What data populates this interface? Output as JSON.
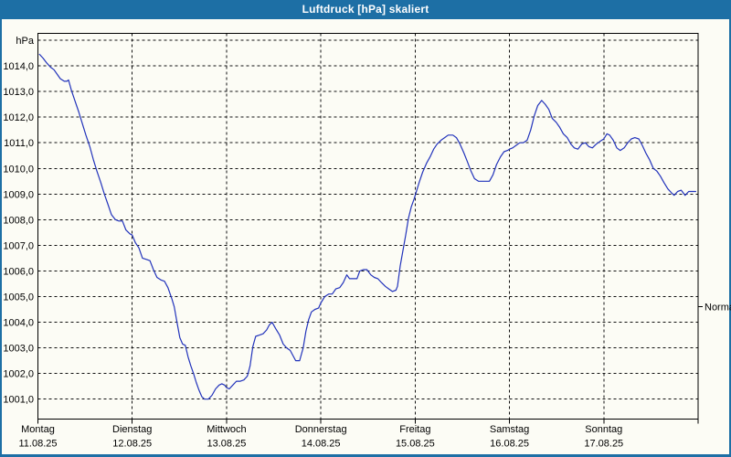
{
  "window": {
    "title": "Luftdruck [hPa] skaliert"
  },
  "colors": {
    "titlebar": "#1d6fa5",
    "frame": "#1d6fa5",
    "background": "#fcfcf5",
    "grid": "#111111",
    "axis": "#000000",
    "line": "#2233bb",
    "text": "#000000"
  },
  "chart_data": {
    "type": "line",
    "title": "Luftdruck [hPa] skaliert",
    "y_axis": {
      "unit_label": "hPa",
      "unit_line_value": 1015,
      "ticks": [
        {
          "value": 1014,
          "label": "1014,0"
        },
        {
          "value": 1013,
          "label": "1013,0"
        },
        {
          "value": 1012,
          "label": "1012,0"
        },
        {
          "value": 1011,
          "label": "1011,0"
        },
        {
          "value": 1010,
          "label": "1010,0"
        },
        {
          "value": 1009,
          "label": "1009,0"
        },
        {
          "value": 1008,
          "label": "1008,0"
        },
        {
          "value": 1007,
          "label": "1007,0"
        },
        {
          "value": 1006,
          "label": "1006,0"
        },
        {
          "value": 1005,
          "label": "1005,0"
        },
        {
          "value": 1004,
          "label": "1004,0"
        },
        {
          "value": 1003,
          "label": "1003,0"
        },
        {
          "value": 1002,
          "label": "1002,0"
        },
        {
          "value": 1001,
          "label": "1001,0"
        }
      ]
    },
    "ylim": [
      1000.2,
      1015.3
    ],
    "x_range_hours": [
      0,
      168
    ],
    "grid": true,
    "legend": "none",
    "x_days": [
      {
        "name": "Montag",
        "date": "11.08.25"
      },
      {
        "name": "Dienstag",
        "date": "12.08.25"
      },
      {
        "name": "Mittwoch",
        "date": "13.08.25"
      },
      {
        "name": "Donnerstag",
        "date": "14.08.25"
      },
      {
        "name": "Freitag",
        "date": "15.08.25"
      },
      {
        "name": "Samstag",
        "date": "16.08.25"
      },
      {
        "name": "Sonntag",
        "date": "17.08.25"
      }
    ],
    "annotations": [
      {
        "label": "Normal",
        "value": 1004.6,
        "side": "right"
      }
    ],
    "series": [
      {
        "name": "Luftdruck",
        "unit": "hPa",
        "color": "#2233bb",
        "x_hours": [
          0.4,
          1.3,
          2.3,
          3.2,
          4.1,
          5,
          5.7,
          6.7,
          7.4,
          7.8,
          8.5,
          9.4,
          10.4,
          11.3,
          12.2,
          13.2,
          14.1,
          15,
          16,
          16.9,
          17.8,
          18.7,
          19.7,
          20.6,
          21.5,
          22.4,
          23.4,
          24,
          24.8,
          25.7,
          26.6,
          27.6,
          28.5,
          29.4,
          30.3,
          31.3,
          32.2,
          33.1,
          34.1,
          34.7,
          35.4,
          36.1,
          36.8,
          37.5,
          38.2,
          38.9,
          39.6,
          40.3,
          41,
          41.7,
          42.4,
          43.4,
          44.3,
          45.2,
          46.1,
          46.8,
          47.5,
          48,
          48.7,
          49.6,
          50.5,
          51.5,
          52.4,
          53.3,
          54,
          54.7,
          55.4,
          56.4,
          57.3,
          58.2,
          58.9,
          59.6,
          60.5,
          61.5,
          62.4,
          63.3,
          64.2,
          64.9,
          65.6,
          66.6,
          67.5,
          68.2,
          68.9,
          69.6,
          70.5,
          71.4,
          72,
          73,
          74,
          74.9,
          75.8,
          76.8,
          77.7,
          78.6,
          79.3,
          80.2,
          81.2,
          81.9,
          82.8,
          83.7,
          84.7,
          85.6,
          86.5,
          87.4,
          88.4,
          89.3,
          90.2,
          91.1,
          91.5,
          92.2,
          92.9,
          93.6,
          94.3,
          95,
          95.7,
          96,
          97,
          97.9,
          98.9,
          99.8,
          100.7,
          101.6,
          102.6,
          103.5,
          104.4,
          105.6,
          106.5,
          107.4,
          108.4,
          109.3,
          110.2,
          111.1,
          112.1,
          113,
          114.9,
          115.8,
          116.7,
          117.7,
          118.6,
          119.5,
          120,
          120.8,
          121.7,
          122.6,
          123.5,
          124.5,
          125.4,
          126.3,
          127.2,
          128.2,
          129.1,
          130,
          130.9,
          131.9,
          132.8,
          133.7,
          134.7,
          135.6,
          136.5,
          137.4,
          138.4,
          139.3,
          140.2,
          141.1,
          142.1,
          143,
          144,
          144.8,
          145.5,
          146.4,
          147.3,
          148.2,
          149.2,
          150.1,
          151,
          151.9,
          152.9,
          153.8,
          154.7,
          155.6,
          156.6,
          157.5,
          158.4,
          159.3,
          160.3,
          161.2,
          161.9,
          162.8,
          163.7,
          164.7,
          165.6,
          166.5,
          167.4
        ],
        "values": [
          1014.45,
          1014.3,
          1014.1,
          1013.95,
          1013.85,
          1013.65,
          1013.5,
          1013.4,
          1013.4,
          1013.45,
          1013.05,
          1012.65,
          1012.2,
          1011.75,
          1011.3,
          1010.85,
          1010.35,
          1009.9,
          1009.45,
          1009,
          1008.6,
          1008.2,
          1008,
          1007.95,
          1007.95,
          1007.6,
          1007.45,
          1007.4,
          1007.1,
          1006.9,
          1006.5,
          1006.45,
          1006.4,
          1006.05,
          1005.75,
          1005.65,
          1005.6,
          1005.35,
          1004.9,
          1004.6,
          1004,
          1003.4,
          1003.15,
          1003.1,
          1002.65,
          1002.3,
          1002,
          1001.65,
          1001.35,
          1001.1,
          1001,
          1001,
          1001.15,
          1001.4,
          1001.55,
          1001.6,
          1001.55,
          1001.45,
          1001.4,
          1001.55,
          1001.7,
          1001.7,
          1001.75,
          1001.9,
          1002.3,
          1003.05,
          1003.45,
          1003.5,
          1003.55,
          1003.7,
          1003.9,
          1004,
          1003.75,
          1003.5,
          1003.15,
          1003,
          1002.9,
          1002.7,
          1002.5,
          1002.5,
          1003,
          1003.65,
          1004.1,
          1004.4,
          1004.5,
          1004.55,
          1004.75,
          1005,
          1005.1,
          1005.1,
          1005.3,
          1005.35,
          1005.55,
          1005.85,
          1005.7,
          1005.7,
          1005.7,
          1006,
          1006.05,
          1006.05,
          1005.85,
          1005.75,
          1005.7,
          1005.55,
          1005.4,
          1005.3,
          1005.2,
          1005.25,
          1005.4,
          1006.2,
          1006.8,
          1007.4,
          1008.05,
          1008.5,
          1008.8,
          1008.95,
          1009.45,
          1009.85,
          1010.2,
          1010.45,
          1010.75,
          1010.95,
          1011.1,
          1011.2,
          1011.3,
          1011.3,
          1011.2,
          1010.95,
          1010.6,
          1010.25,
          1009.9,
          1009.6,
          1009.5,
          1009.5,
          1009.5,
          1009.75,
          1010.15,
          1010.45,
          1010.65,
          1010.7,
          1010.75,
          1010.8,
          1010.9,
          1011,
          1011,
          1011.1,
          1011.5,
          1012.05,
          1012.45,
          1012.65,
          1012.5,
          1012.3,
          1011.95,
          1011.8,
          1011.6,
          1011.35,
          1011.2,
          1010.95,
          1010.8,
          1010.75,
          1010.95,
          1011,
          1010.85,
          1010.8,
          1010.95,
          1011.05,
          1011.15,
          1011.35,
          1011.3,
          1011.1,
          1010.8,
          1010.7,
          1010.8,
          1011,
          1011.15,
          1011.2,
          1011.15,
          1010.9,
          1010.6,
          1010.35,
          1010,
          1009.9,
          1009.7,
          1009.45,
          1009.2,
          1009.05,
          1008.95,
          1009.1,
          1009.15,
          1008.95,
          1009.1,
          1009.1,
          1009.1
        ]
      }
    ]
  }
}
